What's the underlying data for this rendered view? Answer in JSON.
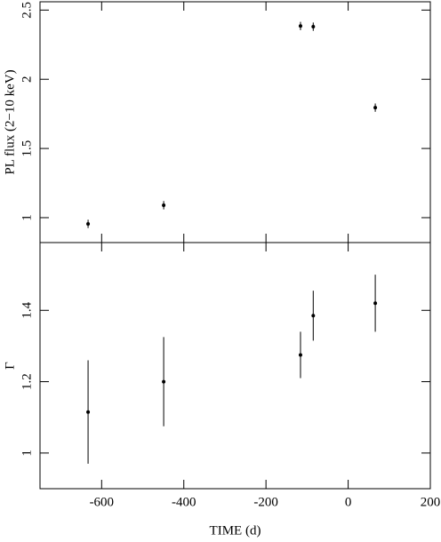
{
  "chart_data": [
    {
      "type": "errorbar",
      "ylabel": "PL flux (2−10 keV)",
      "x": [
        -633,
        -449,
        -116,
        -85,
        66
      ],
      "values": [
        0.955,
        1.09,
        2.385,
        2.38,
        1.795
      ],
      "errors": [
        0.03,
        0.03,
        0.03,
        0.03,
        0.03
      ],
      "color": "#000000",
      "xlim": [
        -750,
        200
      ],
      "ylim": [
        0.82,
        2.56
      ],
      "yticks": [
        1,
        1.5,
        2,
        2.5
      ]
    },
    {
      "type": "errorbar",
      "xlabel": "TIME (d)",
      "ylabel": "Γ",
      "x": [
        -633,
        -449,
        -116,
        -85,
        66
      ],
      "values": [
        1.115,
        1.2,
        1.275,
        1.385,
        1.42
      ],
      "errors": [
        0.145,
        0.125,
        0.065,
        0.07,
        0.08
      ],
      "color": "#000000",
      "xlim": [
        -750,
        200
      ],
      "ylim": [
        0.9,
        1.59
      ],
      "xticks": [
        -600,
        -400,
        -200,
        0,
        200
      ],
      "yticks": [
        1,
        1.2,
        1.4
      ]
    }
  ]
}
